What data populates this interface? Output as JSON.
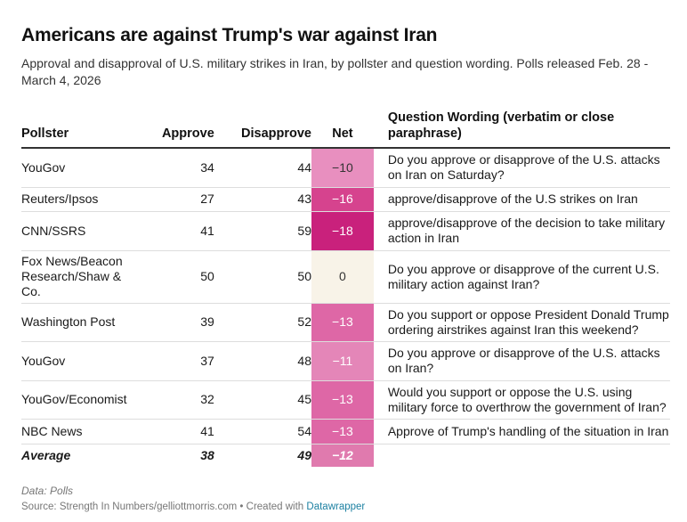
{
  "title": "Americans are against Trump's war against Iran",
  "subtitle": "Approval and disapproval of U.S. military strikes in Iran, by pollster and question wording. Polls released Feb. 28 - March 4, 2026",
  "chart_data": {
    "type": "table",
    "columns": [
      "Pollster",
      "Approve",
      "Disapprove",
      "Net",
      "Question Wording (verbatim or close paraphrase)"
    ],
    "rows": [
      {
        "pollster": "YouGov",
        "approve": "34",
        "disapprove": "44",
        "net": "−10",
        "net_value": -10,
        "net_color": "#e88fbf",
        "net_text_color": "#333333",
        "question": "Do you approve or disapprove of the U.S. attacks on Iran on Saturday?"
      },
      {
        "pollster": "Reuters/Ipsos",
        "approve": "27",
        "disapprove": "43",
        "net": "−16",
        "net_value": -16,
        "net_color": "#d6438e",
        "net_text_color": "#ffffff",
        "question": "approve/disapprove of the U.S strikes on Iran"
      },
      {
        "pollster": "CNN/SSRS",
        "approve": "41",
        "disapprove": "59",
        "net": "−18",
        "net_value": -18,
        "net_color": "#c9217c",
        "net_text_color": "#ffffff",
        "question": "approve/disapprove of the decision to take military action in Iran"
      },
      {
        "pollster": "Fox News/Beacon Research/Shaw & Co.",
        "approve": "50",
        "disapprove": "50",
        "net": "0",
        "net_value": 0,
        "net_color": "#f8f3e8",
        "net_text_color": "#333333",
        "question": "Do you approve or disapprove of the current U.S. military action against Iran?"
      },
      {
        "pollster": "Washington Post",
        "approve": "39",
        "disapprove": "52",
        "net": "−13",
        "net_value": -13,
        "net_color": "#de67a6",
        "net_text_color": "#ffffff",
        "question": "Do you support or oppose President Donald Trump ordering airstrikes against Iran this weekend?"
      },
      {
        "pollster": "YouGov",
        "approve": "37",
        "disapprove": "48",
        "net": "−11",
        "net_value": -11,
        "net_color": "#e486b8",
        "net_text_color": "#ffffff",
        "question": "Do you approve or disapprove of the U.S. attacks on Iran?"
      },
      {
        "pollster": "YouGov/Economist",
        "approve": "32",
        "disapprove": "45",
        "net": "−13",
        "net_value": -13,
        "net_color": "#de67a6",
        "net_text_color": "#ffffff",
        "question": "Would you support or oppose the U.S. using military force to overthrow the government of Iran?"
      },
      {
        "pollster": "NBC News",
        "approve": "41",
        "disapprove": "54",
        "net": "−13",
        "net_value": -13,
        "net_color": "#de67a6",
        "net_text_color": "#ffffff",
        "question": "Approve of Trump's handling of the situation in Iran"
      }
    ],
    "average": {
      "label": "Average",
      "approve": "38",
      "disapprove": "49",
      "net": "−12",
      "net_value": -12,
      "net_color": "#e07aae",
      "net_text_color": "#ffffff"
    }
  },
  "notes": "Data: Polls",
  "source_prefix": "Source: Strength In Numbers/gelliottmorris.com • Created with ",
  "source_link": "Datawrapper"
}
